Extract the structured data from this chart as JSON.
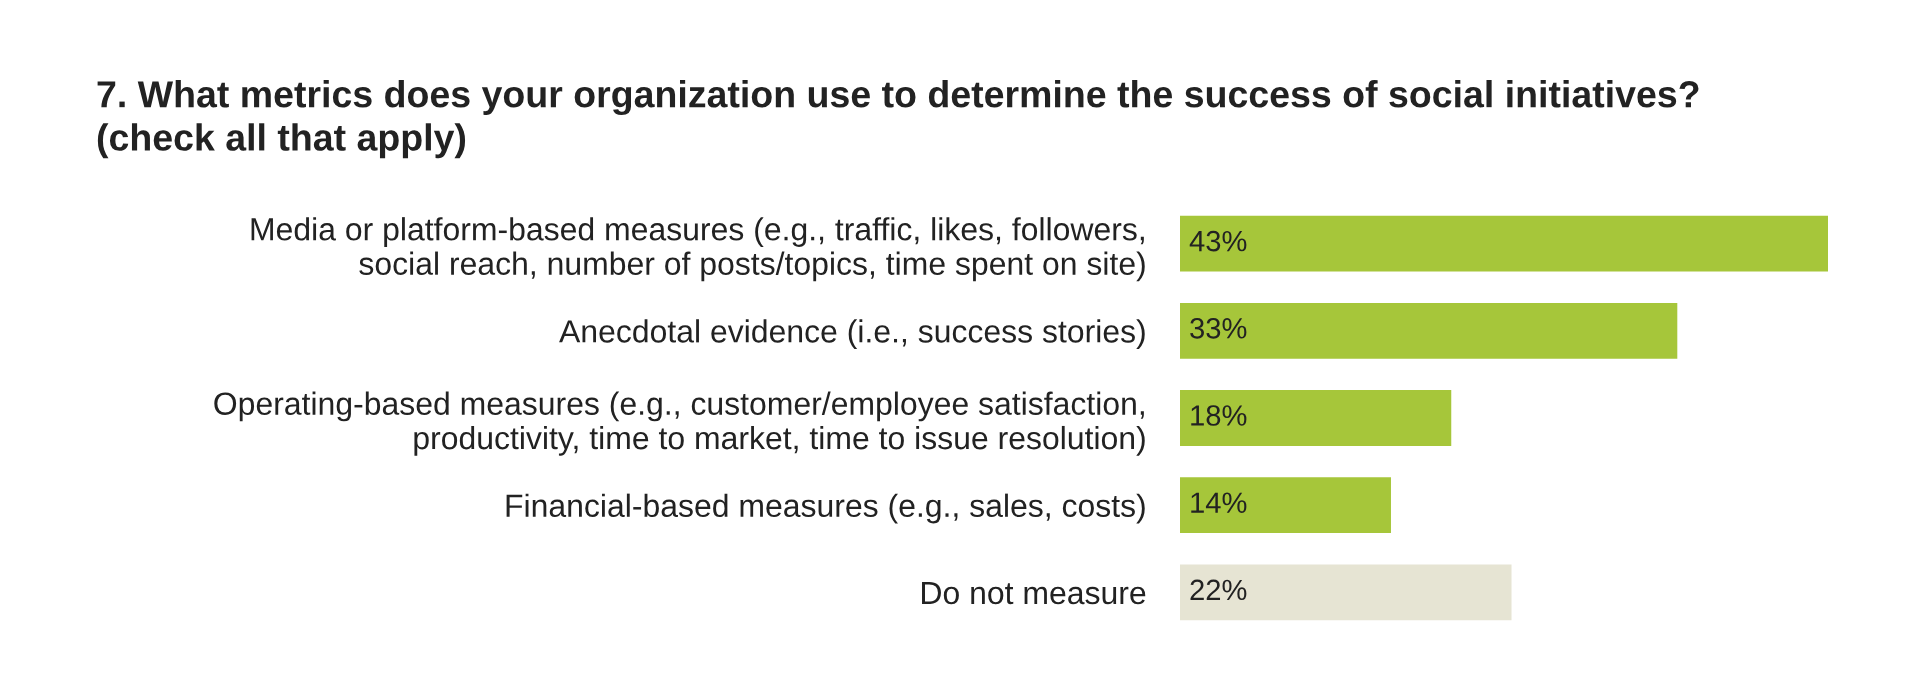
{
  "chart_data": {
    "type": "bar",
    "orientation": "horizontal",
    "title": "7. What metrics does your organization use to determine the success of social initiatives?\n(check all that apply)",
    "categories": [
      "Media or platform-based measures (e.g., traffic, likes, followers,\nsocial reach, number of posts/topics, time spent on site)",
      "Anecdotal evidence (i.e., success stories)",
      "Operating-based measures (e.g., customer/employee satisfaction,\nproductivity, time to market, time to issue resolution)",
      "Financial-based measures (e.g., sales, costs)",
      "Do not measure"
    ],
    "values": [
      43,
      33,
      18,
      14,
      22
    ],
    "colors": [
      "#a6c63a",
      "#a6c63a",
      "#a6c63a",
      "#a6c63a",
      "#e6e4d3"
    ],
    "value_labels": [
      "43%",
      "33%",
      "18%",
      "14%",
      "22%"
    ],
    "grid": false,
    "legend": false
  }
}
